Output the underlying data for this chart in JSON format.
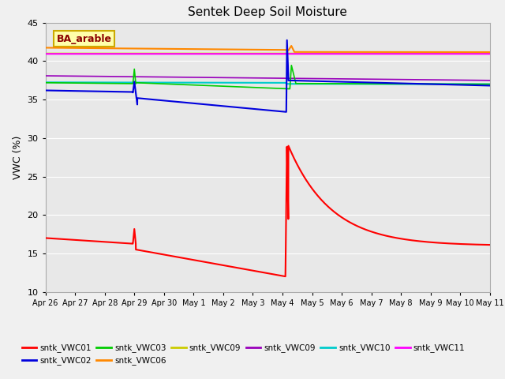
{
  "title": "Sentek Deep Soil Moisture",
  "ylabel": "VWC (%)",
  "ylim": [
    10,
    45
  ],
  "yticks": [
    10,
    15,
    20,
    25,
    30,
    35,
    40,
    45
  ],
  "annotation_text": "BA_arable",
  "annotation_color": "#8B0000",
  "annotation_bg": "#ffffaa",
  "annotation_edge": "#ccaa00",
  "xtick_labels": [
    "Apr 26",
    "Apr 27",
    "Apr 28",
    "Apr 29",
    "Apr 30",
    "May 1",
    "May 2",
    "May 3",
    "May 4",
    "May 5",
    "May 6",
    "May 7",
    "May 8",
    "May 9",
    "May 10",
    "May 11"
  ],
  "xtick_positions": [
    0,
    1,
    2,
    3,
    4,
    5,
    6,
    7,
    8,
    9,
    10,
    11,
    12,
    13,
    14,
    15
  ],
  "colors": {
    "vwc01": "#ff0000",
    "vwc02": "#0000dd",
    "vwc03": "#00cc00",
    "vwc06": "#ff8800",
    "vwc09y": "#cccc00",
    "vwc09p": "#9900bb",
    "vwc10": "#00cccc",
    "vwc11": "#ff00ff"
  },
  "fig_bg": "#f0f0f0",
  "ax_bg": "#e8e8e8",
  "grid_color": "#ffffff"
}
